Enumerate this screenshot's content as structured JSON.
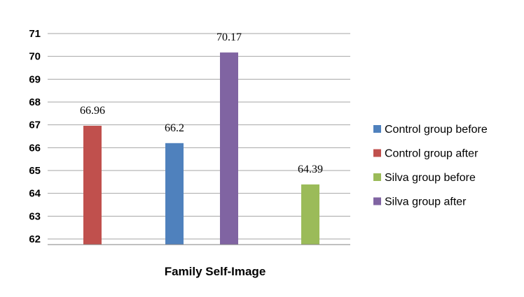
{
  "chart_data": {
    "type": "bar",
    "xlabel": "Family Self-Image",
    "ylabel": "",
    "ylim": [
      62,
      71
    ],
    "yticks": [
      "62",
      "63",
      "64",
      "65",
      "66",
      "67",
      "68",
      "69",
      "70",
      "71"
    ],
    "grid": true,
    "legend_position": "right",
    "bars": [
      {
        "name": "Control group after",
        "value": 66.96,
        "label": "66.96",
        "color": "#c0504d"
      },
      {
        "name": "Control group before",
        "value": 66.2,
        "label": "66.2",
        "color": "#4f81bd"
      },
      {
        "name": "Silva group after",
        "value": 70.17,
        "label": "70.17",
        "color": "#8064a2"
      },
      {
        "name": "Silva group before",
        "value": 64.39,
        "label": "64.39",
        "color": "#9bbb59"
      }
    ],
    "legend": [
      {
        "label": "Control group before",
        "color": "#4f81bd"
      },
      {
        "label": "Control group after",
        "color": "#c0504d"
      },
      {
        "label": "Silva group before",
        "color": "#9bbb59"
      },
      {
        "label": "Silva group after",
        "color": "#8064a2"
      }
    ]
  }
}
